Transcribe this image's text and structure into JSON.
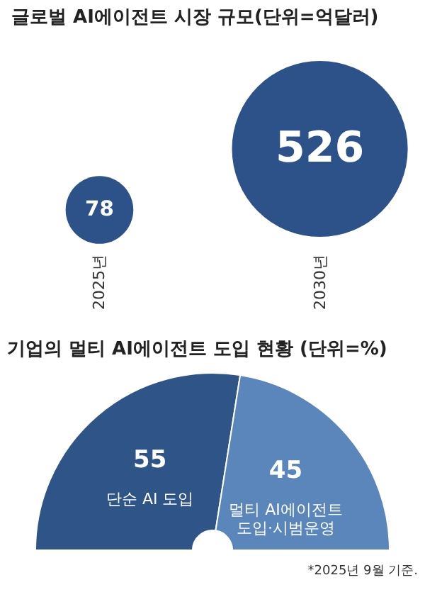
{
  "chart_data": [
    {
      "type": "other",
      "title": "글로벌 AI에이전트 시장 규모(단위=억달러)",
      "categories": [
        "2025년",
        "2030년"
      ],
      "values": [
        78,
        526
      ],
      "color": "#2d5189",
      "data_labels": true
    },
    {
      "type": "pie",
      "title": "기업의 멀티 AI에이전트 도입 현황 (단위=%)",
      "categories": [
        "단순 AI 도입",
        "멀티 AI에이전트\n도입·시범운영"
      ],
      "values": [
        55,
        45
      ],
      "colors": [
        "#2f5588",
        "#5a86bb"
      ],
      "data_labels": true,
      "annotations": [
        "*2025년 9월 기준."
      ]
    }
  ]
}
